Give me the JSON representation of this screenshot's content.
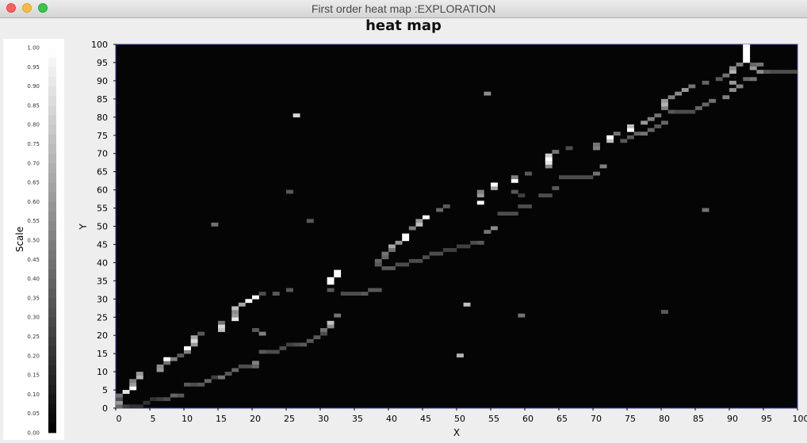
{
  "window": {
    "title": "First order heat map :EXPLORATION"
  },
  "chart_data": {
    "type": "heatmap",
    "title": "heat map",
    "xlabel": "X",
    "ylabel": "Y",
    "xlim": [
      0,
      100
    ],
    "ylim": [
      0,
      100
    ],
    "xticks": [
      "0",
      "5",
      "10",
      "15",
      "20",
      "25",
      "30",
      "35",
      "40",
      "45",
      "50",
      "55",
      "60",
      "65",
      "70",
      "75",
      "80",
      "85",
      "90",
      "95",
      "100"
    ],
    "yticks": [
      "0",
      "5",
      "10",
      "15",
      "20",
      "25",
      "30",
      "35",
      "40",
      "45",
      "50",
      "55",
      "60",
      "65",
      "70",
      "75",
      "80",
      "85",
      "90",
      "95",
      "100"
    ],
    "background_value": 0.0,
    "colorscale": {
      "label": "Scale",
      "range": [
        0,
        1
      ],
      "ticks": [
        "0.00",
        "0.05",
        "0.10",
        "0.15",
        "0.20",
        "0.25",
        "0.30",
        "0.35",
        "0.40",
        "0.45",
        "0.50",
        "0.55",
        "0.60",
        "0.65",
        "0.70",
        "0.75",
        "0.80",
        "0.85",
        "0.90",
        "0.95",
        "1.00"
      ],
      "low_color": "#000000",
      "high_color": "#ffffff"
    },
    "cells": [
      [
        0,
        0,
        0.4
      ],
      [
        0,
        1,
        0.6
      ],
      [
        0,
        2,
        0.3
      ],
      [
        0,
        3,
        0.45
      ],
      [
        1,
        0,
        0.25
      ],
      [
        1,
        4,
        0.9
      ],
      [
        2,
        5,
        1.0
      ],
      [
        2,
        6,
        0.6
      ],
      [
        2,
        7,
        0.5
      ],
      [
        3,
        8,
        0.7
      ],
      [
        3,
        9,
        0.6
      ],
      [
        2,
        0,
        0.2
      ],
      [
        3,
        0,
        0.2
      ],
      [
        4,
        1,
        0.2
      ],
      [
        5,
        2,
        0.2
      ],
      [
        6,
        2,
        0.25
      ],
      [
        7,
        2,
        0.3
      ],
      [
        8,
        3,
        0.4
      ],
      [
        9,
        3,
        0.35
      ],
      [
        6,
        10,
        0.6
      ],
      [
        6,
        11,
        0.55
      ],
      [
        7,
        12,
        0.45
      ],
      [
        7,
        13,
        1.0
      ],
      [
        8,
        13,
        0.5
      ],
      [
        9,
        14,
        0.35
      ],
      [
        10,
        15,
        0.5
      ],
      [
        10,
        16,
        1.0
      ],
      [
        11,
        17,
        0.6
      ],
      [
        11,
        18,
        0.85
      ],
      [
        11,
        19,
        0.65
      ],
      [
        12,
        20,
        0.35
      ],
      [
        10,
        6,
        0.35
      ],
      [
        11,
        6,
        0.3
      ],
      [
        12,
        6,
        0.35
      ],
      [
        13,
        7,
        0.4
      ],
      [
        14,
        8,
        0.25
      ],
      [
        15,
        8,
        0.45
      ],
      [
        16,
        9,
        0.35
      ],
      [
        17,
        10,
        0.4
      ],
      [
        18,
        11,
        0.3
      ],
      [
        19,
        11,
        0.3
      ],
      [
        20,
        12,
        0.5
      ],
      [
        20,
        11,
        0.4
      ],
      [
        15,
        21,
        0.75
      ],
      [
        15,
        22,
        0.85
      ],
      [
        15,
        23,
        0.45
      ],
      [
        17,
        24,
        0.9
      ],
      [
        17,
        25,
        0.6
      ],
      [
        17,
        26,
        0.55
      ],
      [
        17,
        27,
        0.75
      ],
      [
        18,
        28,
        0.65
      ],
      [
        19,
        29,
        1.0
      ],
      [
        20,
        30,
        1.0
      ],
      [
        21,
        31,
        0.3
      ],
      [
        20,
        21,
        0.35
      ],
      [
        21,
        20,
        0.5
      ],
      [
        21,
        15,
        0.35
      ],
      [
        22,
        15,
        0.3
      ],
      [
        23,
        15,
        0.3
      ],
      [
        24,
        16,
        0.3
      ],
      [
        25,
        17,
        0.25
      ],
      [
        26,
        17,
        0.3
      ],
      [
        27,
        17,
        0.35
      ],
      [
        28,
        18,
        0.35
      ],
      [
        29,
        19,
        0.35
      ],
      [
        30,
        20,
        0.3
      ],
      [
        30,
        21,
        0.45
      ],
      [
        31,
        22,
        0.55
      ],
      [
        31,
        23,
        0.75
      ],
      [
        32,
        25,
        0.45
      ],
      [
        23,
        31,
        0.35
      ],
      [
        25,
        32,
        0.35
      ],
      [
        31,
        32,
        0.35
      ],
      [
        31,
        34,
        1.0
      ],
      [
        31,
        35,
        1.0
      ],
      [
        32,
        37,
        1.0
      ],
      [
        32,
        36,
        1.0
      ],
      [
        33,
        31,
        0.3
      ],
      [
        34,
        31,
        0.3
      ],
      [
        35,
        31,
        0.3
      ],
      [
        36,
        31,
        0.35
      ],
      [
        37,
        32,
        0.35
      ],
      [
        38,
        32,
        0.35
      ],
      [
        38,
        40,
        0.4
      ],
      [
        38,
        39,
        0.35
      ],
      [
        39,
        42,
        0.45
      ],
      [
        39,
        41,
        0.4
      ],
      [
        40,
        44,
        0.65
      ],
      [
        40,
        43,
        0.45
      ],
      [
        41,
        45,
        0.6
      ],
      [
        42,
        46,
        1.0
      ],
      [
        42,
        47,
        1.0
      ],
      [
        43,
        49,
        0.5
      ],
      [
        44,
        50,
        0.75
      ],
      [
        44,
        51,
        0.6
      ],
      [
        45,
        52,
        1.0
      ],
      [
        39,
        38,
        0.35
      ],
      [
        40,
        38,
        0.35
      ],
      [
        41,
        39,
        0.3
      ],
      [
        42,
        39,
        0.3
      ],
      [
        43,
        40,
        0.3
      ],
      [
        44,
        40,
        0.3
      ],
      [
        45,
        41,
        0.3
      ],
      [
        46,
        42,
        0.3
      ],
      [
        47,
        42,
        0.3
      ],
      [
        48,
        43,
        0.25
      ],
      [
        49,
        43,
        0.25
      ],
      [
        50,
        44,
        0.25
      ],
      [
        51,
        44,
        0.25
      ],
      [
        52,
        45,
        0.3
      ],
      [
        53,
        45,
        0.35
      ],
      [
        54,
        48,
        0.45
      ],
      [
        55,
        49,
        0.55
      ],
      [
        47,
        54,
        0.4
      ],
      [
        48,
        55,
        0.35
      ],
      [
        53,
        56,
        1.0
      ],
      [
        53,
        58,
        0.6
      ],
      [
        53,
        59,
        0.5
      ],
      [
        55,
        60,
        0.65
      ],
      [
        55,
        61,
        1.0
      ],
      [
        58,
        59,
        0.35
      ],
      [
        59,
        58,
        0.25
      ],
      [
        58,
        62,
        1.0
      ],
      [
        58,
        63,
        0.5
      ],
      [
        56,
        53,
        0.3
      ],
      [
        57,
        53,
        0.3
      ],
      [
        58,
        53,
        0.3
      ],
      [
        59,
        55,
        0.3
      ],
      [
        60,
        55,
        0.3
      ],
      [
        60,
        64,
        0.35
      ],
      [
        62,
        58,
        0.3
      ],
      [
        63,
        58,
        0.3
      ],
      [
        64,
        60,
        0.35
      ],
      [
        63,
        66,
        0.55
      ],
      [
        63,
        67,
        0.9
      ],
      [
        63,
        68,
        1.0
      ],
      [
        63,
        69,
        0.8
      ],
      [
        64,
        70,
        0.45
      ],
      [
        66,
        71,
        0.3
      ],
      [
        65,
        63,
        0.3
      ],
      [
        66,
        63,
        0.3
      ],
      [
        67,
        63,
        0.3
      ],
      [
        68,
        63,
        0.3
      ],
      [
        69,
        63,
        0.3
      ],
      [
        70,
        64,
        0.45
      ],
      [
        71,
        66,
        0.5
      ],
      [
        70,
        71,
        0.5
      ],
      [
        70,
        72,
        0.45
      ],
      [
        72,
        73,
        0.75
      ],
      [
        72,
        74,
        1.0
      ],
      [
        73,
        75,
        0.45
      ],
      [
        74,
        73,
        0.35
      ],
      [
        75,
        74,
        0.35
      ],
      [
        76,
        75,
        0.4
      ],
      [
        77,
        75,
        0.45
      ],
      [
        78,
        76,
        0.4
      ],
      [
        75,
        76,
        1.0
      ],
      [
        75,
        77,
        0.75
      ],
      [
        77,
        78,
        0.6
      ],
      [
        78,
        79,
        0.5
      ],
      [
        79,
        80,
        0.45
      ],
      [
        80,
        82,
        0.5
      ],
      [
        80,
        83,
        0.7
      ],
      [
        80,
        84,
        0.6
      ],
      [
        81,
        85,
        0.5
      ],
      [
        82,
        86,
        0.55
      ],
      [
        83,
        87,
        0.6
      ],
      [
        84,
        88,
        0.45
      ],
      [
        79,
        77,
        0.35
      ],
      [
        80,
        78,
        0.4
      ],
      [
        81,
        81,
        0.35
      ],
      [
        82,
        81,
        0.3
      ],
      [
        83,
        81,
        0.3
      ],
      [
        84,
        81,
        0.3
      ],
      [
        85,
        82,
        0.4
      ],
      [
        86,
        83,
        0.4
      ],
      [
        87,
        84,
        0.45
      ],
      [
        89,
        85,
        0.5
      ],
      [
        90,
        87,
        0.55
      ],
      [
        91,
        88,
        0.5
      ],
      [
        90,
        89,
        0.6
      ],
      [
        86,
        89,
        0.4
      ],
      [
        88,
        90,
        0.35
      ],
      [
        89,
        91,
        0.45
      ],
      [
        90,
        92,
        0.7
      ],
      [
        90,
        93,
        0.55
      ],
      [
        91,
        94,
        0.5
      ],
      [
        92,
        95,
        1.0
      ],
      [
        92,
        96,
        1.0
      ],
      [
        92,
        97,
        1.0
      ],
      [
        92,
        98,
        1.0
      ],
      [
        92,
        99,
        1.0
      ],
      [
        93,
        93,
        0.6
      ],
      [
        93,
        94,
        0.4
      ],
      [
        94,
        94,
        0.45
      ],
      [
        94,
        92,
        0.55
      ],
      [
        93,
        90,
        0.45
      ],
      [
        92,
        90,
        0.4
      ],
      [
        95,
        92,
        0.35
      ],
      [
        96,
        92,
        0.3
      ],
      [
        97,
        92,
        0.3
      ],
      [
        98,
        92,
        0.3
      ],
      [
        99,
        92,
        0.3
      ],
      [
        26,
        80,
        0.85
      ],
      [
        54,
        86,
        0.55
      ],
      [
        86,
        54,
        0.45
      ],
      [
        14,
        50,
        0.45
      ],
      [
        25,
        59,
        0.35
      ],
      [
        28,
        51,
        0.35
      ],
      [
        50,
        14,
        0.7
      ],
      [
        51,
        28,
        0.75
      ],
      [
        59,
        25,
        0.45
      ],
      [
        80,
        26,
        0.35
      ]
    ]
  }
}
